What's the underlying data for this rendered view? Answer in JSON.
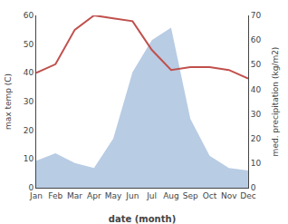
{
  "chart_data": {
    "type": "line",
    "categories": [
      "Jan",
      "Feb",
      "Mar",
      "Apr",
      "May",
      "Jun",
      "Jul",
      "Aug",
      "Sep",
      "Oct",
      "Nov",
      "Dec"
    ],
    "x_label": "date (month)",
    "y_label": "max temp (C)",
    "y2_label": "med. precipitation (kg/m2)",
    "series": [
      {
        "type": "area",
        "axis": "y2",
        "color": "#b8cce4",
        "values": [
          11,
          14,
          10,
          8,
          20,
          47,
          60,
          65,
          28,
          13,
          8,
          7
        ]
      },
      {
        "type": "line",
        "color": "#c0504d",
        "values": [
          40,
          43,
          55,
          60,
          59,
          58,
          48,
          41,
          42,
          42,
          41,
          38
        ]
      }
    ],
    "ylim": [
      0,
      60
    ],
    "yticks": [
      0,
      10,
      20,
      30,
      40,
      50,
      60
    ],
    "y2lim": [
      0,
      70
    ],
    "y2ticks": [
      0,
      10,
      20,
      30,
      40,
      50,
      60,
      70
    ],
    "grid": false
  }
}
